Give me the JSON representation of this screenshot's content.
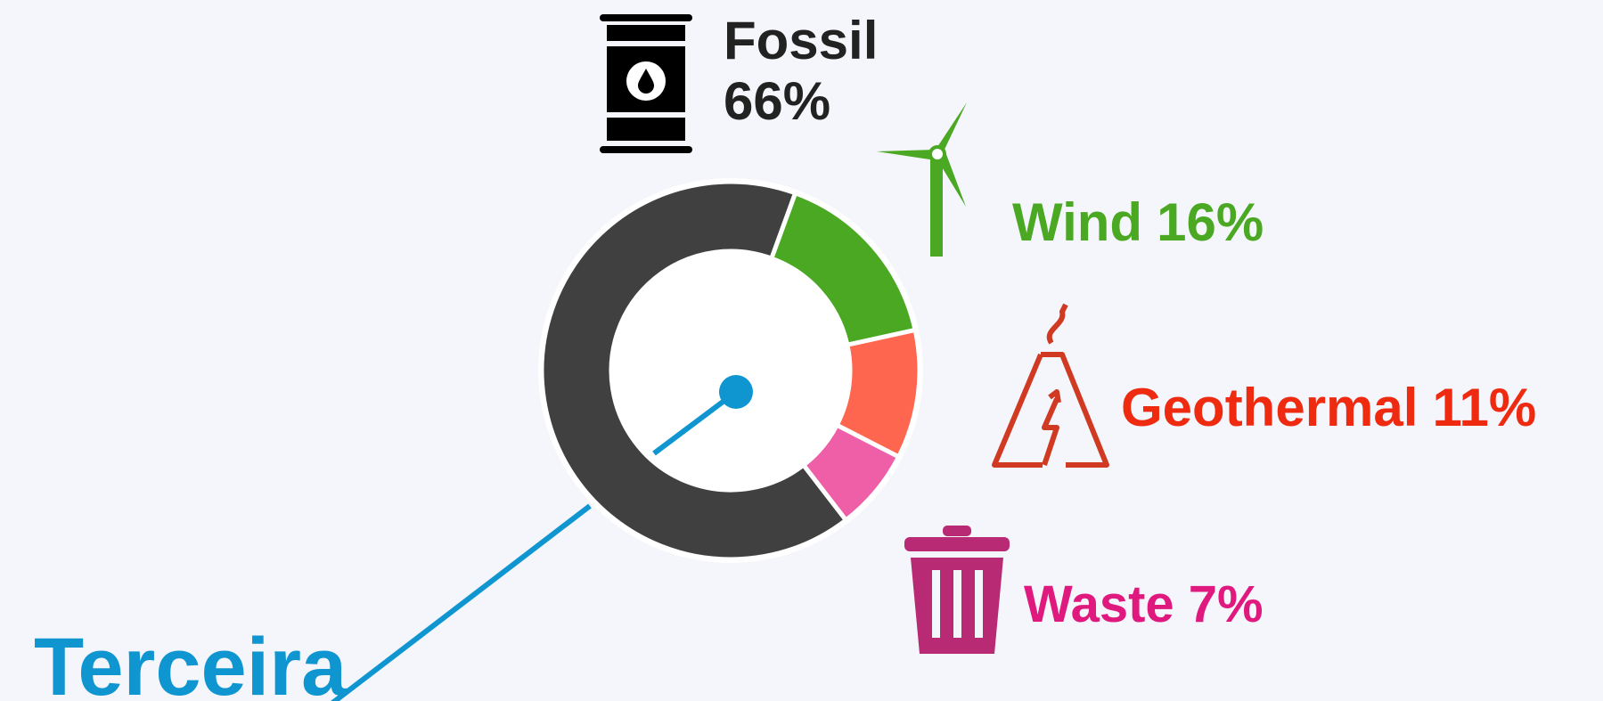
{
  "chart_data": {
    "type": "donut",
    "title": "Terceira",
    "categories": [
      "Wind",
      "Geothermal",
      "Waste",
      "Fossil"
    ],
    "values": [
      16,
      11,
      7,
      66
    ],
    "value_labels": [
      "16%",
      "11%",
      "7%",
      "66%"
    ],
    "colors": [
      "#4aa823",
      "#ff6650",
      "#ee5fa7",
      "#404040"
    ],
    "label_colors": [
      "#4aa823",
      "#ee2a10",
      "#e0197f",
      "#222222"
    ]
  }
}
